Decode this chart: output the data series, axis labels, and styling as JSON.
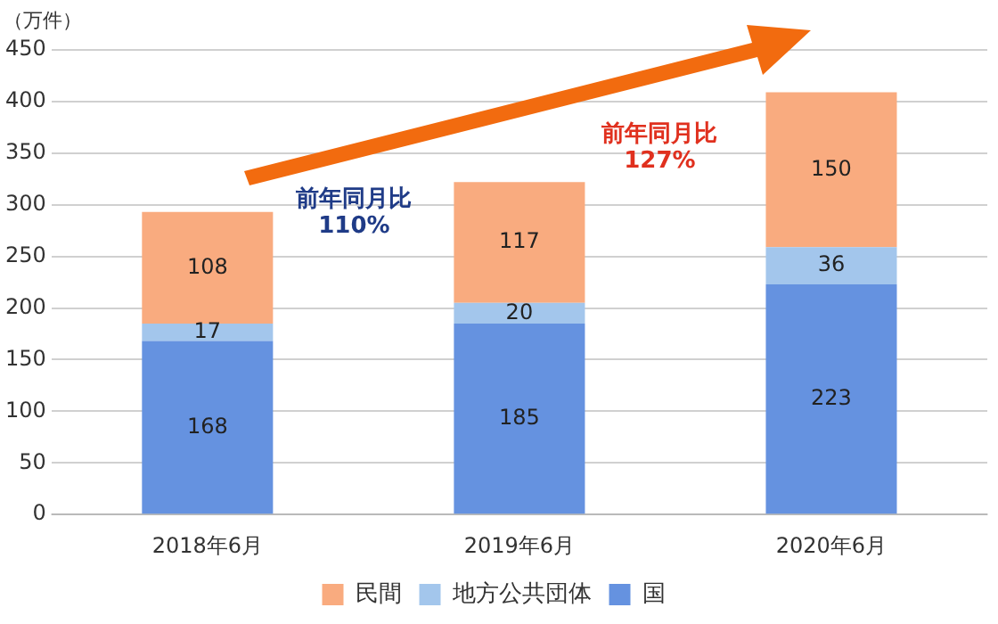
{
  "chart_data": {
    "type": "bar",
    "stacked": true,
    "ylabel": "（万件）",
    "categories": [
      "2018年6月",
      "2019年6月",
      "2020年6月"
    ],
    "series": [
      {
        "name": "国",
        "color": "#6592e0",
        "values": [
          168,
          185,
          223
        ]
      },
      {
        "name": "地方公共団体",
        "color": "#a3c6ec",
        "values": [
          17,
          20,
          36
        ]
      },
      {
        "name": "民間",
        "color": "#f9ab7f",
        "values": [
          108,
          117,
          150
        ]
      }
    ],
    "ylim": [
      0,
      450
    ],
    "yticks": [
      0,
      50,
      100,
      150,
      200,
      250,
      300,
      350,
      400,
      450
    ],
    "grid": "y",
    "legend": "bottom",
    "data_labels": true,
    "annotations": [
      "前年同月比\n110%",
      "前年同月比\n127%"
    ]
  }
}
